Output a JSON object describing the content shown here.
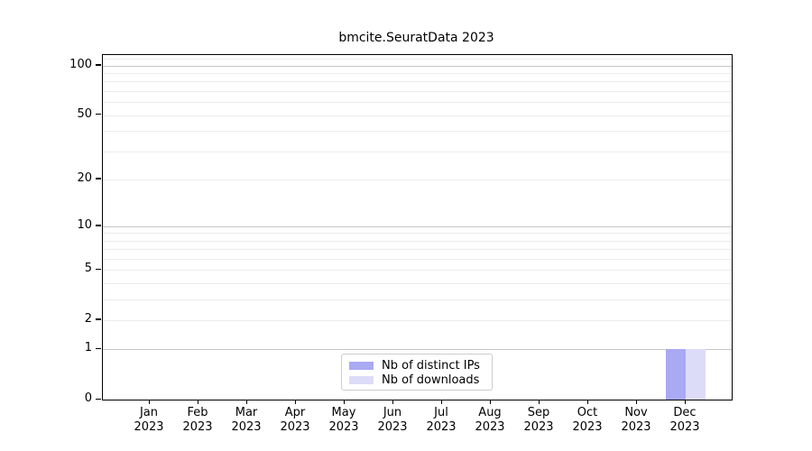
{
  "chart_data": {
    "type": "bar",
    "title": "bmcite.SeuratData 2023",
    "categories": [
      "Jan",
      "Feb",
      "Mar",
      "Apr",
      "May",
      "Jun",
      "Jul",
      "Aug",
      "Sep",
      "Oct",
      "Nov",
      "Dec"
    ],
    "year_label": "2023",
    "series": [
      {
        "name": "Nb of distinct IPs",
        "color": "#a9a9f4",
        "values": [
          0,
          0,
          0,
          0,
          0,
          0,
          0,
          0,
          0,
          0,
          0,
          1
        ]
      },
      {
        "name": "Nb of downloads",
        "color": "#dcdcf8",
        "values": [
          0,
          0,
          0,
          0,
          0,
          0,
          0,
          0,
          0,
          0,
          0,
          1
        ]
      }
    ],
    "y_axis": {
      "scale": "log1p",
      "max": 116,
      "tick_labels": [
        0,
        1,
        2,
        5,
        10,
        20,
        50,
        100
      ],
      "major_gridlines": [
        1,
        10,
        100
      ],
      "minor_gridlines": [
        2,
        3,
        4,
        5,
        6,
        7,
        8,
        9,
        20,
        30,
        40,
        50,
        60,
        70,
        80,
        90,
        110
      ]
    },
    "x_axis": {
      "ticks_per_month": true
    },
    "legend": {
      "position": "bottom-center"
    },
    "colors": {
      "major_grid": "#c6c6c6",
      "minor_grid": "#ececec",
      "axis": "#000000",
      "background": "#ffffff"
    },
    "grid": true
  }
}
